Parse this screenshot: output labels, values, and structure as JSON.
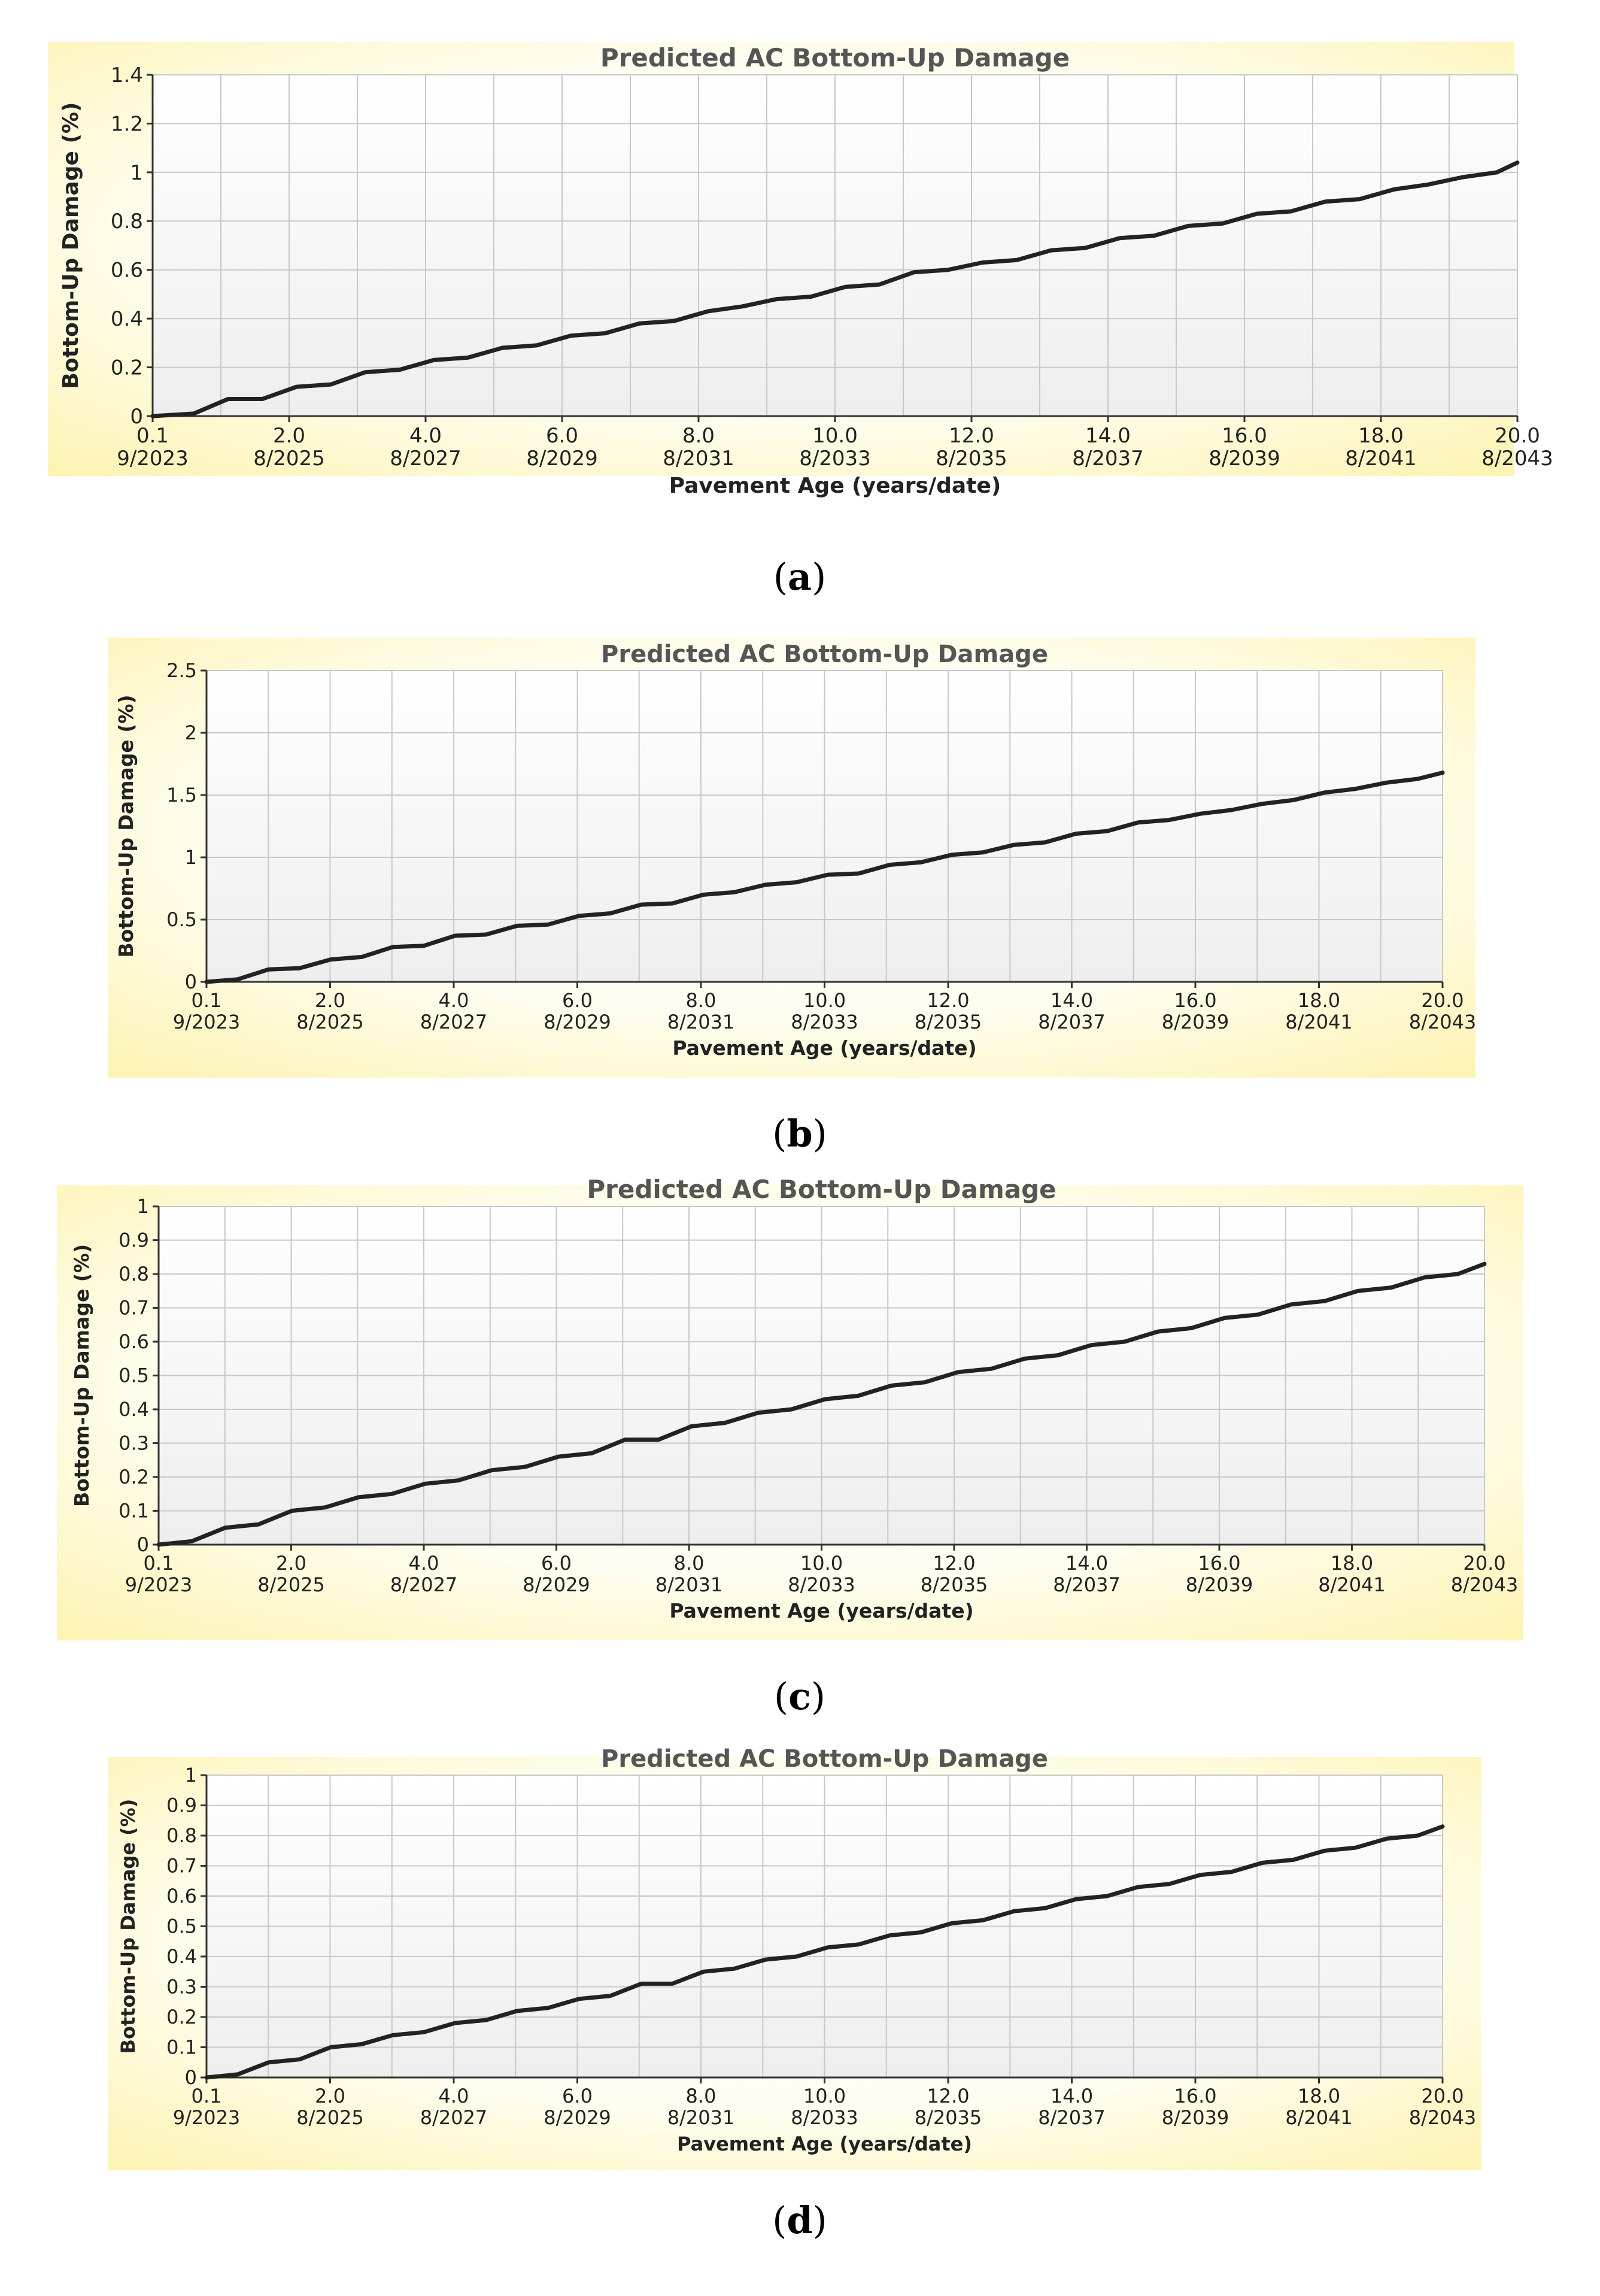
{
  "chart_data": [
    {
      "panel_label": "a",
      "type": "line",
      "title": "Predicted AC Bottom-Up Damage",
      "xlabel": "Pavement Age (years/date)",
      "ylabel": "Bottom-Up Damage (%)",
      "xlim": [
        0.1,
        20.0
      ],
      "ylim": [
        0,
        1.4
      ],
      "y_ticks": [
        "0",
        "0.2",
        "0.4",
        "0.6",
        "0.8",
        "1",
        "1.2",
        "1.4"
      ],
      "x_ticks": [
        {
          "value": 0.1,
          "age": "0.1",
          "date": "9/2023"
        },
        {
          "value": 2.0,
          "age": "2.0",
          "date": "8/2025"
        },
        {
          "value": 4.0,
          "age": "4.0",
          "date": "8/2027"
        },
        {
          "value": 6.0,
          "age": "6.0",
          "date": "8/2029"
        },
        {
          "value": 8.0,
          "age": "8.0",
          "date": "8/2031"
        },
        {
          "value": 10.0,
          "age": "10.0",
          "date": "8/2033"
        },
        {
          "value": 12.0,
          "age": "12.0",
          "date": "8/2035"
        },
        {
          "value": 14.0,
          "age": "14.0",
          "date": "8/2037"
        },
        {
          "value": 16.0,
          "age": "16.0",
          "date": "8/2039"
        },
        {
          "value": 18.0,
          "age": "18.0",
          "date": "8/2041"
        },
        {
          "value": 20.0,
          "age": "20.0",
          "date": "8/2043"
        }
      ],
      "grid_lines": 20,
      "grid": true,
      "series": [
        {
          "name": "Bottom-Up Damage",
          "x": [
            0.1,
            0.7,
            1.2,
            1.7,
            2.2,
            2.7,
            3.2,
            3.7,
            4.2,
            4.7,
            5.2,
            5.7,
            6.2,
            6.7,
            7.2,
            7.7,
            8.2,
            8.7,
            9.2,
            9.7,
            10.2,
            10.7,
            11.2,
            11.7,
            12.2,
            12.7,
            13.2,
            13.7,
            14.2,
            14.7,
            15.2,
            15.7,
            16.2,
            16.7,
            17.2,
            17.7,
            18.2,
            18.7,
            19.2,
            19.7,
            20.0
          ],
          "y": [
            0,
            0.01,
            0.07,
            0.07,
            0.12,
            0.13,
            0.18,
            0.19,
            0.23,
            0.24,
            0.28,
            0.29,
            0.33,
            0.34,
            0.38,
            0.39,
            0.43,
            0.45,
            0.48,
            0.49,
            0.53,
            0.54,
            0.59,
            0.6,
            0.63,
            0.64,
            0.68,
            0.69,
            0.73,
            0.74,
            0.78,
            0.79,
            0.83,
            0.84,
            0.88,
            0.89,
            0.93,
            0.95,
            0.98,
            1.0,
            1.04
          ]
        }
      ]
    },
    {
      "panel_label": "b",
      "type": "line",
      "title": "Predicted AC Bottom-Up Damage",
      "xlabel": "Pavement Age (years/date)",
      "ylabel": "Bottom-Up Damage (%)",
      "xlim": [
        0.1,
        20.0
      ],
      "ylim": [
        0,
        2.5
      ],
      "y_ticks": [
        "0",
        "0.5",
        "1",
        "1.5",
        "2",
        "2.5"
      ],
      "x_ticks": [
        {
          "value": 0.1,
          "age": "0.1",
          "date": "9/2023"
        },
        {
          "value": 2.0,
          "age": "2.0",
          "date": "8/2025"
        },
        {
          "value": 4.0,
          "age": "4.0",
          "date": "8/2027"
        },
        {
          "value": 6.0,
          "age": "6.0",
          "date": "8/2029"
        },
        {
          "value": 8.0,
          "age": "8.0",
          "date": "8/2031"
        },
        {
          "value": 10.0,
          "age": "10.0",
          "date": "8/2033"
        },
        {
          "value": 12.0,
          "age": "12.0",
          "date": "8/2035"
        },
        {
          "value": 14.0,
          "age": "14.0",
          "date": "8/2037"
        },
        {
          "value": 16.0,
          "age": "16.0",
          "date": "8/2039"
        },
        {
          "value": 18.0,
          "age": "18.0",
          "date": "8/2041"
        },
        {
          "value": 20.0,
          "age": "20.0",
          "date": "8/2043"
        }
      ],
      "grid_lines": 20,
      "grid": true,
      "series": [
        {
          "name": "Bottom-Up Damage",
          "x": [
            0.1,
            0.6,
            1.1,
            1.6,
            2.1,
            2.6,
            3.1,
            3.6,
            4.1,
            4.6,
            5.1,
            5.6,
            6.1,
            6.6,
            7.1,
            7.6,
            8.1,
            8.6,
            9.1,
            9.6,
            10.1,
            10.6,
            11.1,
            11.6,
            12.1,
            12.6,
            13.1,
            13.6,
            14.1,
            14.6,
            15.1,
            15.6,
            16.1,
            16.6,
            17.1,
            17.6,
            18.1,
            18.6,
            19.1,
            19.6,
            20.0
          ],
          "y": [
            0,
            0.02,
            0.1,
            0.11,
            0.18,
            0.2,
            0.28,
            0.29,
            0.37,
            0.38,
            0.45,
            0.46,
            0.53,
            0.55,
            0.62,
            0.63,
            0.7,
            0.72,
            0.78,
            0.8,
            0.86,
            0.87,
            0.94,
            0.96,
            1.02,
            1.04,
            1.1,
            1.12,
            1.19,
            1.21,
            1.28,
            1.3,
            1.35,
            1.38,
            1.43,
            1.46,
            1.52,
            1.55,
            1.6,
            1.63,
            1.68
          ]
        }
      ]
    },
    {
      "panel_label": "c",
      "type": "line",
      "title": "Predicted AC Bottom-Up Damage",
      "xlabel": "Pavement Age (years/date)",
      "ylabel": "Bottom-Up Damage (%)",
      "xlim": [
        0.1,
        20.0
      ],
      "ylim": [
        0,
        1
      ],
      "y_ticks": [
        "0",
        "0.1",
        "0.2",
        "0.3",
        "0.4",
        "0.5",
        "0.6",
        "0.7",
        "0.8",
        "0.9",
        "1"
      ],
      "x_ticks": [
        {
          "value": 0.1,
          "age": "0.1",
          "date": "9/2023"
        },
        {
          "value": 2.0,
          "age": "2.0",
          "date": "8/2025"
        },
        {
          "value": 4.0,
          "age": "4.0",
          "date": "8/2027"
        },
        {
          "value": 6.0,
          "age": "6.0",
          "date": "8/2029"
        },
        {
          "value": 8.0,
          "age": "8.0",
          "date": "8/2031"
        },
        {
          "value": 10.0,
          "age": "10.0",
          "date": "8/2033"
        },
        {
          "value": 12.0,
          "age": "12.0",
          "date": "8/2035"
        },
        {
          "value": 14.0,
          "age": "14.0",
          "date": "8/2037"
        },
        {
          "value": 16.0,
          "age": "16.0",
          "date": "8/2039"
        },
        {
          "value": 18.0,
          "age": "18.0",
          "date": "8/2041"
        },
        {
          "value": 20.0,
          "age": "20.0",
          "date": "8/2043"
        }
      ],
      "grid_lines": 20,
      "grid": true,
      "series": [
        {
          "name": "Bottom-Up Damage",
          "x": [
            0.1,
            0.6,
            1.1,
            1.6,
            2.1,
            2.6,
            3.1,
            3.6,
            4.1,
            4.6,
            5.1,
            5.6,
            6.1,
            6.6,
            7.1,
            7.6,
            8.1,
            8.6,
            9.1,
            9.6,
            10.1,
            10.6,
            11.1,
            11.6,
            12.1,
            12.6,
            13.1,
            13.6,
            14.1,
            14.6,
            15.1,
            15.6,
            16.1,
            16.6,
            17.1,
            17.6,
            18.1,
            18.6,
            19.1,
            19.6,
            20.0
          ],
          "y": [
            0,
            0.01,
            0.05,
            0.06,
            0.1,
            0.11,
            0.14,
            0.15,
            0.18,
            0.19,
            0.22,
            0.23,
            0.26,
            0.27,
            0.31,
            0.31,
            0.35,
            0.36,
            0.39,
            0.4,
            0.43,
            0.44,
            0.47,
            0.48,
            0.51,
            0.52,
            0.55,
            0.56,
            0.59,
            0.6,
            0.63,
            0.64,
            0.67,
            0.68,
            0.71,
            0.72,
            0.75,
            0.76,
            0.79,
            0.8,
            0.83
          ]
        }
      ]
    },
    {
      "panel_label": "d",
      "type": "line",
      "title": "Predicted AC Bottom-Up Damage",
      "xlabel": "Pavement Age (years/date)",
      "ylabel": "Bottom-Up Damage (%)",
      "xlim": [
        0.1,
        20.0
      ],
      "ylim": [
        0,
        1
      ],
      "y_ticks": [
        "0",
        "0.1",
        "0.2",
        "0.3",
        "0.4",
        "0.5",
        "0.6",
        "0.7",
        "0.8",
        "0.9",
        "1"
      ],
      "x_ticks": [
        {
          "value": 0.1,
          "age": "0.1",
          "date": "9/2023"
        },
        {
          "value": 2.0,
          "age": "2.0",
          "date": "8/2025"
        },
        {
          "value": 4.0,
          "age": "4.0",
          "date": "8/2027"
        },
        {
          "value": 6.0,
          "age": "6.0",
          "date": "8/2029"
        },
        {
          "value": 8.0,
          "age": "8.0",
          "date": "8/2031"
        },
        {
          "value": 10.0,
          "age": "10.0",
          "date": "8/2033"
        },
        {
          "value": 12.0,
          "age": "12.0",
          "date": "8/2035"
        },
        {
          "value": 14.0,
          "age": "14.0",
          "date": "8/2037"
        },
        {
          "value": 16.0,
          "age": "16.0",
          "date": "8/2039"
        },
        {
          "value": 18.0,
          "age": "18.0",
          "date": "8/2041"
        },
        {
          "value": 20.0,
          "age": "20.0",
          "date": "8/2043"
        }
      ],
      "grid_lines": 20,
      "grid": true,
      "series": [
        {
          "name": "Bottom-Up Damage",
          "x": [
            0.1,
            0.6,
            1.1,
            1.6,
            2.1,
            2.6,
            3.1,
            3.6,
            4.1,
            4.6,
            5.1,
            5.6,
            6.1,
            6.6,
            7.1,
            7.6,
            8.1,
            8.6,
            9.1,
            9.6,
            10.1,
            10.6,
            11.1,
            11.6,
            12.1,
            12.6,
            13.1,
            13.6,
            14.1,
            14.6,
            15.1,
            15.6,
            16.1,
            16.6,
            17.1,
            17.6,
            18.1,
            18.6,
            19.1,
            19.6,
            20.0
          ],
          "y": [
            0,
            0.01,
            0.05,
            0.06,
            0.1,
            0.11,
            0.14,
            0.15,
            0.18,
            0.19,
            0.22,
            0.23,
            0.26,
            0.27,
            0.31,
            0.31,
            0.35,
            0.36,
            0.39,
            0.4,
            0.43,
            0.44,
            0.47,
            0.48,
            0.51,
            0.52,
            0.55,
            0.56,
            0.59,
            0.6,
            0.63,
            0.64,
            0.67,
            0.68,
            0.71,
            0.72,
            0.75,
            0.76,
            0.79,
            0.8,
            0.83
          ]
        }
      ]
    }
  ],
  "colors": {
    "panel_background_edge": "#fdf6b9",
    "panel_background_center": "#fffde8",
    "plot_background": "#f7f7f7",
    "grid": "#c8c8c8",
    "series": "#222222",
    "title": "#555555"
  }
}
